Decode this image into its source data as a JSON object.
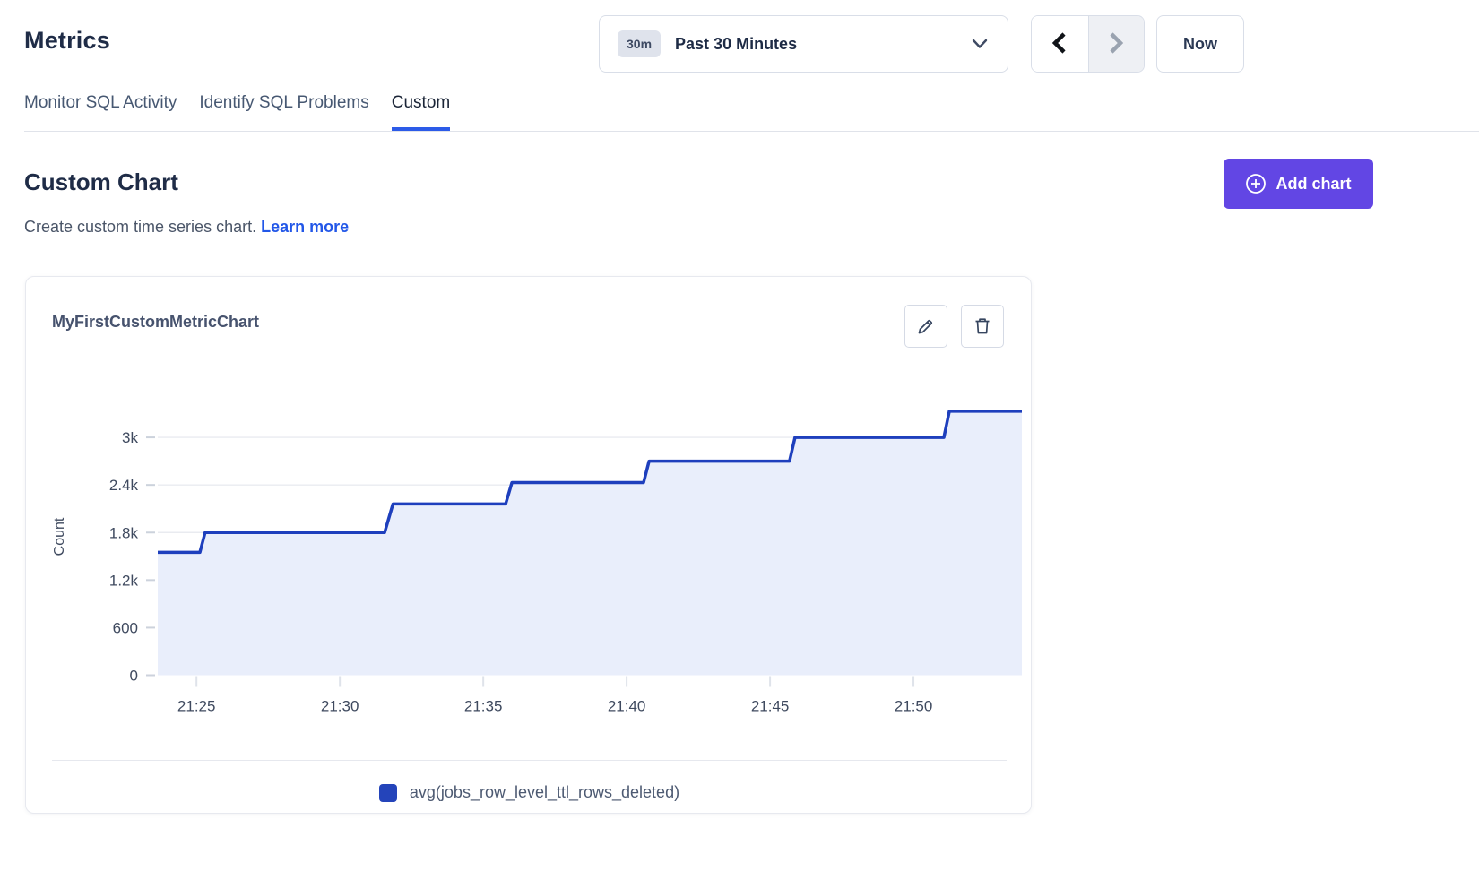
{
  "page": {
    "title": "Metrics"
  },
  "time_controls": {
    "range_badge": "30m",
    "range_label": "Past 30 Minutes",
    "now_label": "Now",
    "back_enabled": true,
    "forward_enabled": false
  },
  "tabs": [
    {
      "label": "Monitor SQL Activity",
      "active": false
    },
    {
      "label": "Identify SQL Problems",
      "active": false
    },
    {
      "label": "Custom",
      "active": true
    }
  ],
  "section": {
    "heading": "Custom Chart",
    "description": "Create custom time series chart.",
    "learn_more_label": "Learn more"
  },
  "add_chart_button": {
    "label": "Add chart"
  },
  "chart_card": {
    "title": "MyFirstCustomMetricChart",
    "legend": [
      {
        "label": "avg(jobs_row_level_ttl_rows_deleted)",
        "color": "#2444ba"
      }
    ]
  },
  "theme": {
    "accent_purple": "#6246e4",
    "link_blue": "#2257e8",
    "tab_underline_blue": "#2c5be8",
    "line_blue": "#1e3fbd",
    "area_fill": "#e9eefb",
    "axis_text": "#3f4a5f",
    "gridline": "#e9ebf0"
  },
  "chart_data": {
    "type": "area",
    "subtype": "step-line-time-series",
    "title": "MyFirstCustomMetricChart",
    "xlabel": "",
    "ylabel": "Count",
    "grid": true,
    "legend_position": "bottom-center",
    "x_unit": "minutes after 21:00",
    "xlim": [
      23.65,
      53.78
    ],
    "ylim": [
      0,
      3600
    ],
    "xticks": [
      {
        "t": 25,
        "label": "21:25"
      },
      {
        "t": 30,
        "label": "21:30"
      },
      {
        "t": 35,
        "label": "21:35"
      },
      {
        "t": 40,
        "label": "21:40"
      },
      {
        "t": 45,
        "label": "21:45"
      },
      {
        "t": 50,
        "label": "21:50"
      }
    ],
    "yticks": [
      {
        "v": 0,
        "label": "0"
      },
      {
        "v": 600,
        "label": "600"
      },
      {
        "v": 1200,
        "label": "1.2k"
      },
      {
        "v": 1800,
        "label": "1.8k"
      },
      {
        "v": 2400,
        "label": "2.4k"
      },
      {
        "v": 3000,
        "label": "3k"
      }
    ],
    "series": [
      {
        "name": "avg(jobs_row_level_ttl_rows_deleted)",
        "line_color": "#1e3fbd",
        "fill_color": "#e9eefb",
        "points": [
          [
            23.65,
            1550
          ],
          [
            25.12,
            1550
          ],
          [
            25.3,
            1800
          ],
          [
            31.56,
            1800
          ],
          [
            31.85,
            2160
          ],
          [
            35.78,
            2160
          ],
          [
            36.0,
            2430
          ],
          [
            40.59,
            2430
          ],
          [
            40.78,
            2700
          ],
          [
            45.68,
            2700
          ],
          [
            45.87,
            3000
          ],
          [
            51.06,
            3000
          ],
          [
            51.25,
            3330
          ],
          [
            53.78,
            3330
          ]
        ]
      }
    ]
  }
}
